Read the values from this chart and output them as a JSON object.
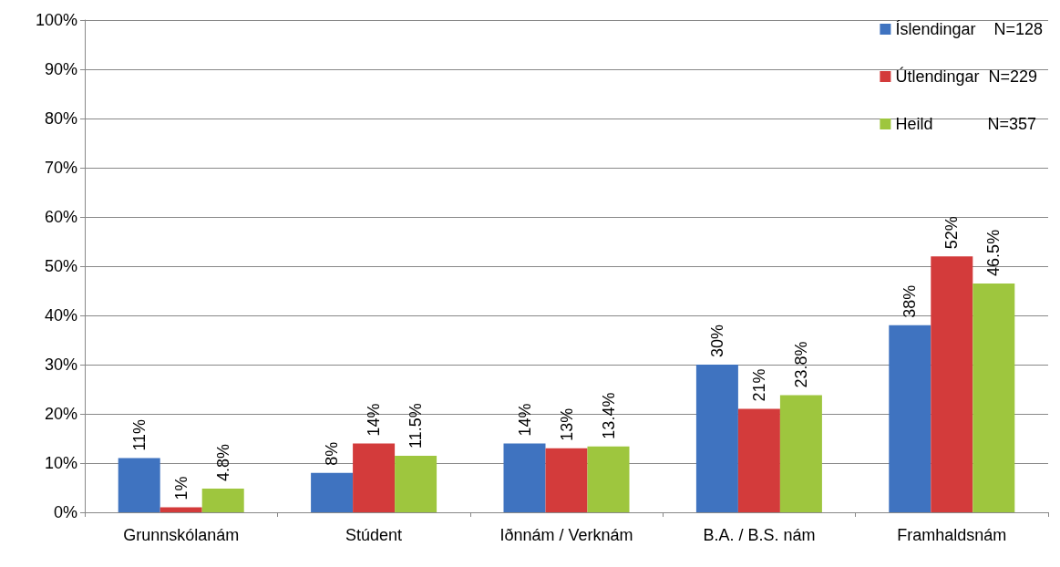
{
  "chart_data": {
    "type": "bar",
    "categories": [
      "Grunnskólanám",
      "Stúdent",
      "Iðnnám / Verknám",
      "B.A. / B.S. nám",
      "Framhaldsnám"
    ],
    "series": [
      {
        "name": "Íslendingar    N=128",
        "color": "#3f73c0",
        "values": [
          11,
          8,
          14,
          30,
          38
        ],
        "value_labels": [
          "11%",
          "8%",
          "14%",
          "30%",
          "38%"
        ]
      },
      {
        "name": "Útlendingar  N=229",
        "color": "#d33b3b",
        "values": [
          1,
          14,
          13,
          21,
          52
        ],
        "value_labels": [
          "1%",
          "14%",
          "13%",
          "21%",
          "52%"
        ]
      },
      {
        "name": "Heild            N=357",
        "color": "#9ec63e",
        "values": [
          4.8,
          11.5,
          13.4,
          23.8,
          46.5
        ],
        "value_labels": [
          "4.8%",
          "11.5%",
          "13.4%",
          "23.8%",
          "46.5%"
        ]
      }
    ],
    "ylim": [
      0,
      100
    ],
    "yticks": [
      {
        "value": 0,
        "label": "0%"
      },
      {
        "value": 10,
        "label": "10%"
      },
      {
        "value": 20,
        "label": "20%"
      },
      {
        "value": 30,
        "label": "30%"
      },
      {
        "value": 40,
        "label": "40%"
      },
      {
        "value": 50,
        "label": "50%"
      },
      {
        "value": 60,
        "label": "60%"
      },
      {
        "value": 70,
        "label": "70%"
      },
      {
        "value": 80,
        "label": "80%"
      },
      {
        "value": 90,
        "label": "90%"
      },
      {
        "value": 100,
        "label": "100%"
      }
    ],
    "grid": "y",
    "legend": "top right"
  }
}
